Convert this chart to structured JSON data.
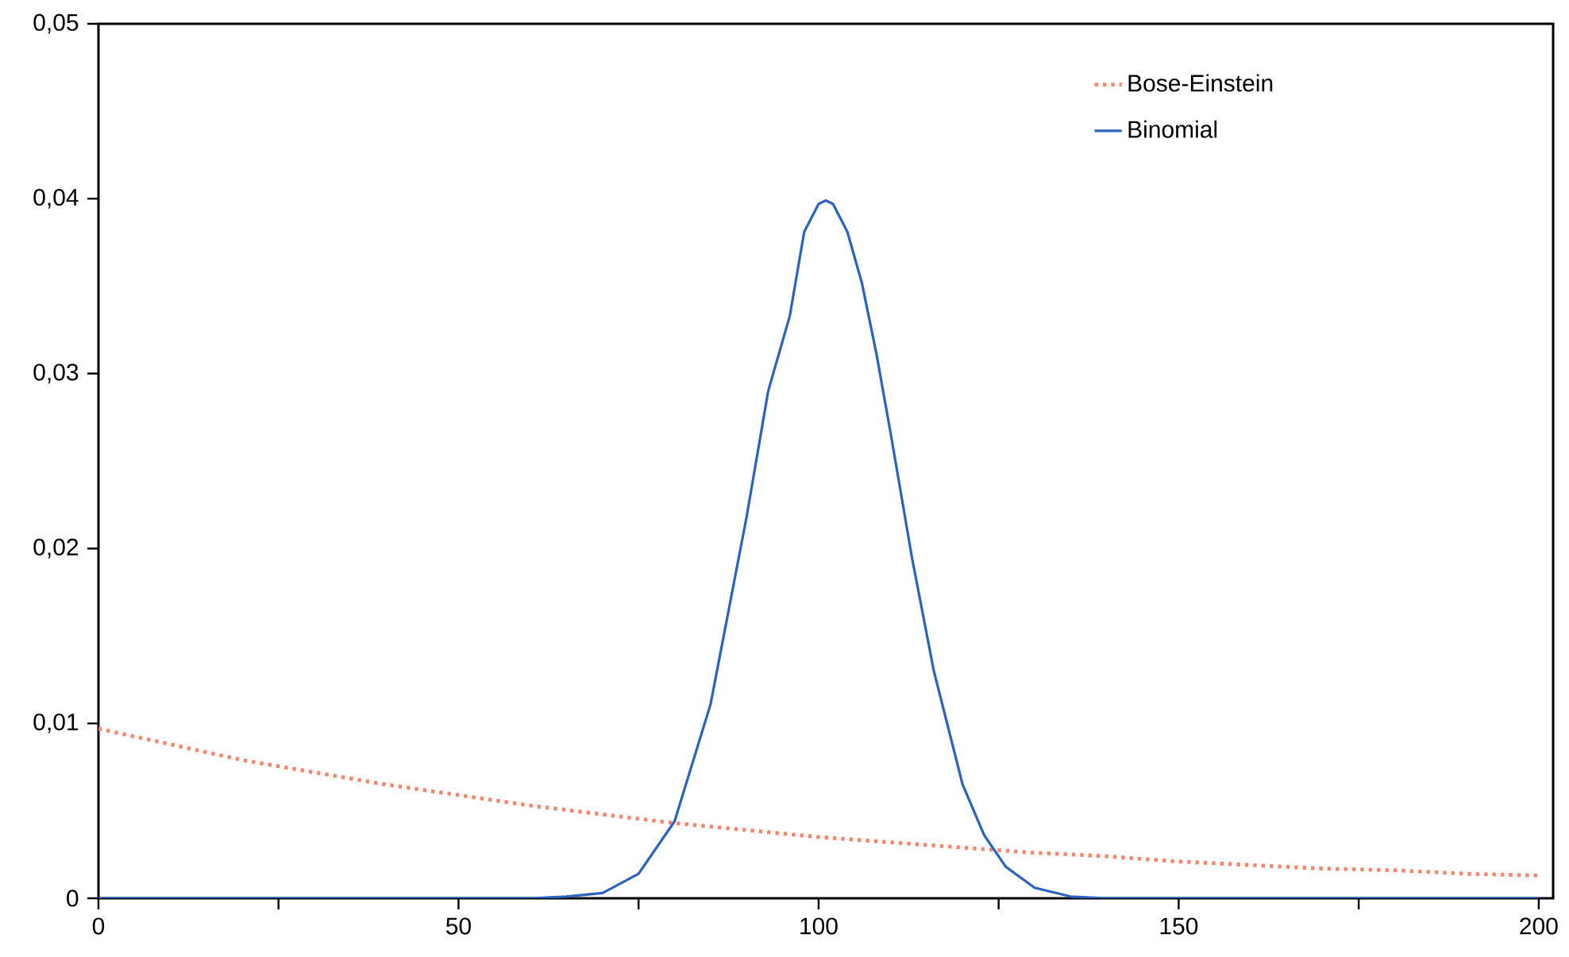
{
  "chart_data": {
    "type": "line",
    "xlim": [
      0,
      202
    ],
    "ylim": [
      0,
      0.05
    ],
    "xticks": [
      0,
      {
        "value": 25,
        "label": null
      },
      50,
      {
        "value": 75,
        "label": null
      },
      100,
      {
        "value": 125,
        "label": null
      },
      150,
      {
        "value": 175,
        "label": null
      },
      200
    ],
    "yticks": [
      0,
      {
        "value": 0.01,
        "label": "0,01"
      },
      {
        "value": 0.02,
        "label": "0,02"
      },
      {
        "value": 0.03,
        "label": "0,03"
      },
      {
        "value": 0.04,
        "label": "0,04"
      },
      {
        "value": 0.05,
        "label": "0,05"
      }
    ],
    "legend": "top right",
    "series": [
      {
        "name": "Bose-Einstein",
        "color": "#f4876e",
        "line_style": "dotted",
        "x": [
          0,
          10,
          20,
          30,
          40,
          50,
          60,
          70,
          80,
          90,
          100,
          110,
          120,
          130,
          140,
          150,
          160,
          170,
          180,
          190,
          200
        ],
        "values": [
          0.0097,
          0.0088,
          0.0079,
          0.0072,
          0.0065,
          0.0059,
          0.0053,
          0.0048,
          0.0043,
          0.0039,
          0.0035,
          0.0032,
          0.0029,
          0.0026,
          0.0024,
          0.0021,
          0.0019,
          0.0017,
          0.0016,
          0.0014,
          0.0013
        ]
      },
      {
        "name": "Binomial",
        "color": "#2a62c0",
        "line_style": "solid",
        "x": [
          0,
          60,
          65,
          70,
          75,
          80,
          85,
          90,
          93,
          96,
          98,
          100,
          101,
          102,
          104,
          106,
          108,
          110,
          113,
          116,
          120,
          123,
          126,
          130,
          135,
          140,
          200
        ],
        "values": [
          0,
          0,
          0.0001,
          0.0003,
          0.0014,
          0.0044,
          0.0111,
          0.0218,
          0.029,
          0.0333,
          0.0381,
          0.0397,
          0.0399,
          0.0397,
          0.0381,
          0.0352,
          0.0312,
          0.0266,
          0.0194,
          0.013,
          0.0065,
          0.0036,
          0.0018,
          0.0006,
          0.0001,
          0,
          0
        ]
      }
    ]
  }
}
